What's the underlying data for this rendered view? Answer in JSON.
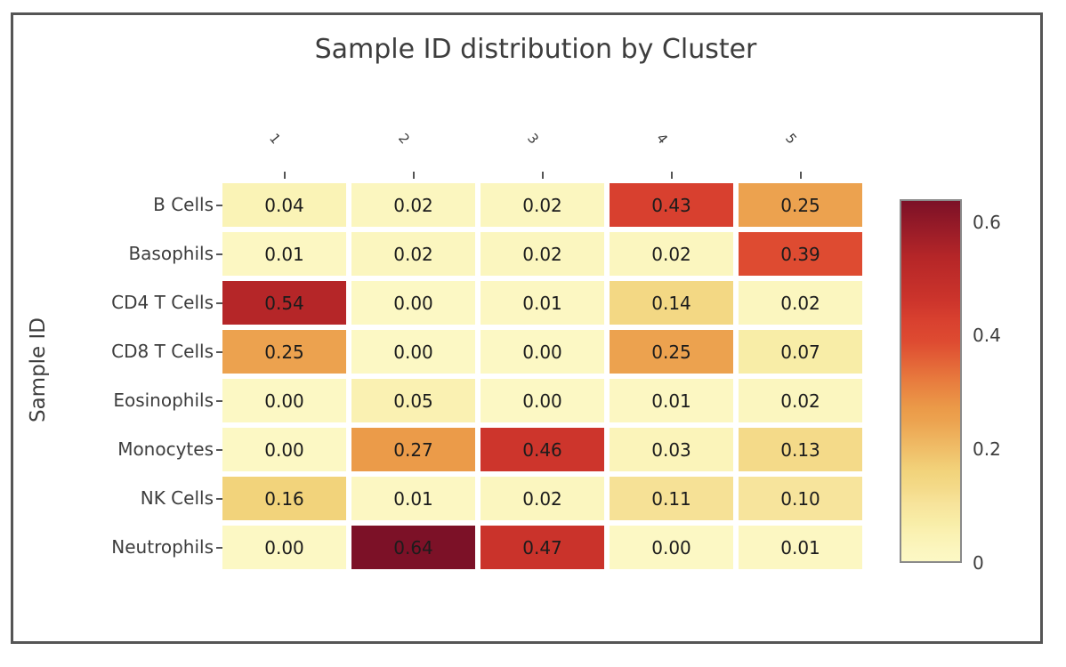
{
  "figure": {
    "background_color": "#ffffff",
    "border_color": "#555555",
    "text_color": "#3d3d3d",
    "annotation_color": "#1c1c1c",
    "colorbar_border_color": "#8a8a8a"
  },
  "chart_data": {
    "type": "heatmap",
    "title": "Sample ID distribution by Cluster",
    "xlabel": "",
    "ylabel": "Sample ID",
    "columns": [
      "1",
      "2",
      "3",
      "4",
      "5"
    ],
    "rows": [
      "B Cells",
      "Basophils",
      "CD4 T Cells",
      "CD8 T Cells",
      "Eosinophils",
      "Monocytes",
      "NK Cells",
      "Neutrophils"
    ],
    "values": [
      [
        0.04,
        0.02,
        0.02,
        0.43,
        0.25
      ],
      [
        0.01,
        0.02,
        0.02,
        0.02,
        0.39
      ],
      [
        0.54,
        0.0,
        0.01,
        0.14,
        0.02
      ],
      [
        0.25,
        0.0,
        0.0,
        0.25,
        0.07
      ],
      [
        0.0,
        0.05,
        0.0,
        0.01,
        0.02
      ],
      [
        0.0,
        0.27,
        0.46,
        0.03,
        0.13
      ],
      [
        0.16,
        0.01,
        0.02,
        0.11,
        0.1
      ],
      [
        0.0,
        0.64,
        0.47,
        0.0,
        0.01
      ]
    ],
    "value_format": "2dp",
    "colormap_name": "YlOrRd",
    "colormap_anchors": [
      {
        "value": 0.0,
        "color": "#fcf8c4"
      },
      {
        "value": 0.01,
        "color": "#fcf7c2"
      },
      {
        "value": 0.02,
        "color": "#fbf6bf"
      },
      {
        "value": 0.03,
        "color": "#fbf4ba"
      },
      {
        "value": 0.04,
        "color": "#faf3b6"
      },
      {
        "value": 0.05,
        "color": "#faf1b2"
      },
      {
        "value": 0.07,
        "color": "#f8eda7"
      },
      {
        "value": 0.1,
        "color": "#f7e49c"
      },
      {
        "value": 0.11,
        "color": "#f6e196"
      },
      {
        "value": 0.13,
        "color": "#f4da89"
      },
      {
        "value": 0.14,
        "color": "#f3d884"
      },
      {
        "value": 0.16,
        "color": "#f2d37b"
      },
      {
        "value": 0.25,
        "color": "#eca24f"
      },
      {
        "value": 0.27,
        "color": "#eb9b49"
      },
      {
        "value": 0.32,
        "color": "#e87c3e"
      },
      {
        "value": 0.39,
        "color": "#de4b31"
      },
      {
        "value": 0.43,
        "color": "#d8402f"
      },
      {
        "value": 0.46,
        "color": "#cd352c"
      },
      {
        "value": 0.47,
        "color": "#ca332b"
      },
      {
        "value": 0.54,
        "color": "#b52628"
      },
      {
        "value": 0.64,
        "color": "#7c1127"
      }
    ],
    "colorbar": {
      "position": "right",
      "range": [
        0,
        0.64
      ],
      "tick_values": [
        0.6,
        0.4,
        0.2,
        0
      ],
      "tick_labels": [
        "0.6",
        "0.4",
        "0.2",
        "0"
      ]
    },
    "grid": false,
    "legend": "colorbar"
  }
}
